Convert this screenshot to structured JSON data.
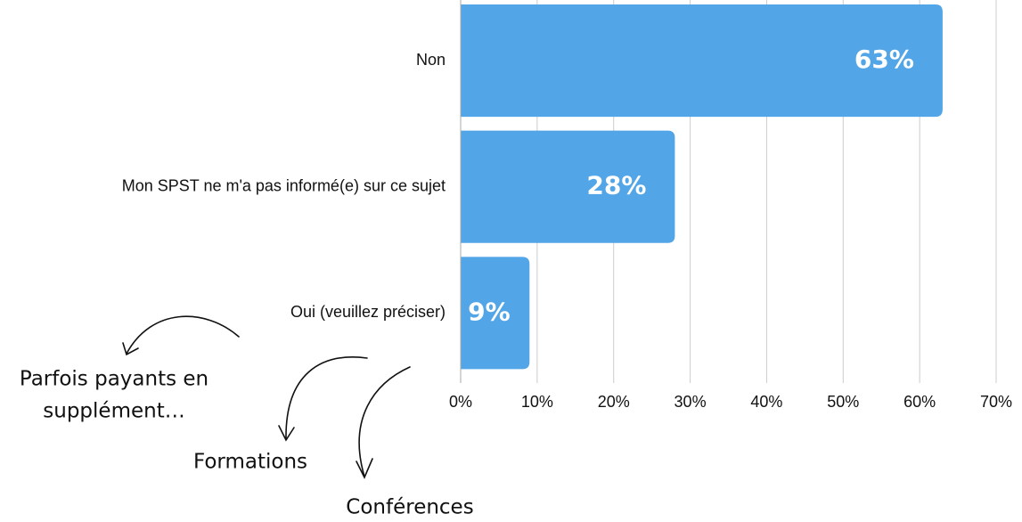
{
  "chart_data": {
    "type": "barh",
    "categories": [
      "Non",
      "Mon SPST ne m'a pas informé(e) sur ce sujet",
      "Oui (veuillez préciser)"
    ],
    "values": [
      63,
      28,
      9
    ],
    "value_labels": [
      "63%",
      "28%",
      "9%"
    ],
    "color": "#52a5e6",
    "xlim": [
      0,
      70
    ],
    "xticks": [
      {
        "value": 0,
        "label": "0%"
      },
      {
        "value": 10,
        "label": "10%"
      },
      {
        "value": 20,
        "label": "20%"
      },
      {
        "value": 30,
        "label": "30%"
      },
      {
        "value": 40,
        "label": "40%"
      },
      {
        "value": 50,
        "label": "50%"
      },
      {
        "value": 60,
        "label": "60%"
      },
      {
        "value": 70,
        "label": "70%"
      }
    ],
    "grid": true,
    "annotations": [
      [
        "Parfois payants en",
        "supplément…"
      ],
      [
        "Formations"
      ],
      [
        "Conférences"
      ]
    ]
  }
}
